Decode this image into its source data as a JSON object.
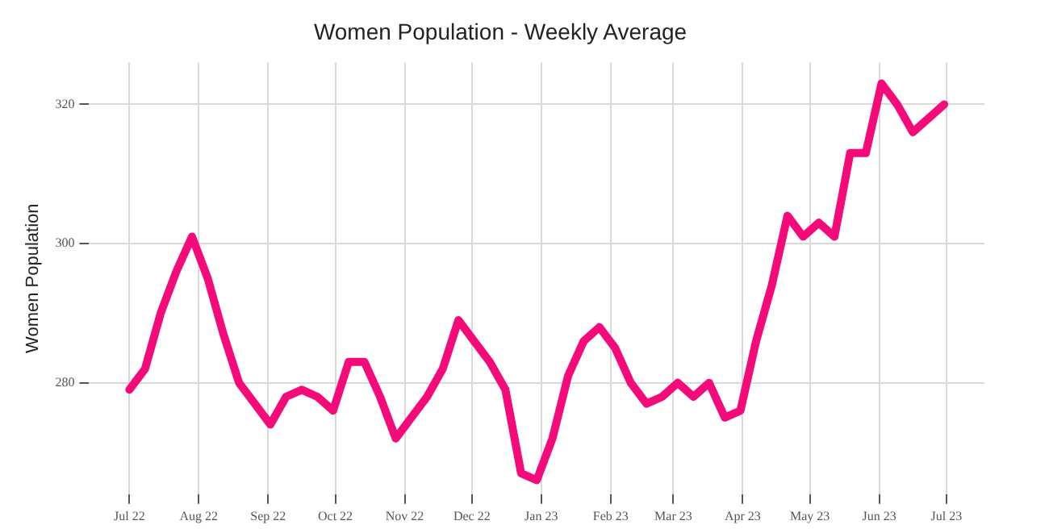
{
  "chart_data": {
    "type": "line",
    "title": "Women Population - Weekly Average",
    "ylabel": "Women Population",
    "x": [
      "2022-07-01",
      "2022-07-08",
      "2022-07-15",
      "2022-07-22",
      "2022-07-29",
      "2022-08-05",
      "2022-08-12",
      "2022-08-19",
      "2022-08-26",
      "2022-09-02",
      "2022-09-09",
      "2022-09-16",
      "2022-09-23",
      "2022-09-30",
      "2022-10-07",
      "2022-10-14",
      "2022-10-21",
      "2022-10-28",
      "2022-11-04",
      "2022-11-11",
      "2022-11-18",
      "2022-11-25",
      "2022-12-02",
      "2022-12-09",
      "2022-12-16",
      "2022-12-23",
      "2022-12-30",
      "2023-01-06",
      "2023-01-13",
      "2023-01-20",
      "2023-01-27",
      "2023-02-03",
      "2023-02-10",
      "2023-02-17",
      "2023-02-24",
      "2023-03-03",
      "2023-03-10",
      "2023-03-17",
      "2023-03-24",
      "2023-03-31",
      "2023-04-07",
      "2023-04-14",
      "2023-04-21",
      "2023-04-28",
      "2023-05-05",
      "2023-05-12",
      "2023-05-19",
      "2023-05-26",
      "2023-06-02",
      "2023-06-09",
      "2023-06-16",
      "2023-06-23",
      "2023-06-30"
    ],
    "series": [
      {
        "color": "#f50a7a",
        "values": [
          279,
          282,
          290,
          296,
          301,
          295,
          287,
          280,
          277,
          274,
          278,
          279,
          278,
          276,
          283,
          283,
          278,
          272,
          275,
          278,
          282,
          289,
          286,
          283,
          279,
          267,
          266,
          272,
          281,
          286,
          288,
          285,
          280,
          277,
          278,
          280,
          278,
          280,
          275,
          276,
          286,
          294,
          304,
          301,
          303,
          301,
          313,
          313,
          323,
          320,
          316,
          318,
          320
        ]
      }
    ],
    "xlim": [
      "2022-06-13",
      "2023-07-18"
    ],
    "xticks": [
      {
        "value": "2022-07-01",
        "label": "Jul 22"
      },
      {
        "value": "2022-08-01",
        "label": "Aug 22"
      },
      {
        "value": "2022-09-01",
        "label": "Sep 22"
      },
      {
        "value": "2022-10-01",
        "label": "Oct 22"
      },
      {
        "value": "2022-11-01",
        "label": "Nov 22"
      },
      {
        "value": "2022-12-01",
        "label": "Dec 22"
      },
      {
        "value": "2023-01-01",
        "label": "Jan 23"
      },
      {
        "value": "2023-02-01",
        "label": "Feb 23"
      },
      {
        "value": "2023-03-01",
        "label": "Mar 23"
      },
      {
        "value": "2023-04-01",
        "label": "Apr 23"
      },
      {
        "value": "2023-05-01",
        "label": "May 23"
      },
      {
        "value": "2023-06-01",
        "label": "Jun 23"
      },
      {
        "value": "2023-07-01",
        "label": "Jul 23"
      }
    ],
    "ylim": [
      264,
      326
    ],
    "yticks": [
      280,
      300,
      320
    ],
    "grid": true,
    "legend": false,
    "marker": "none",
    "line_style": "solid"
  }
}
